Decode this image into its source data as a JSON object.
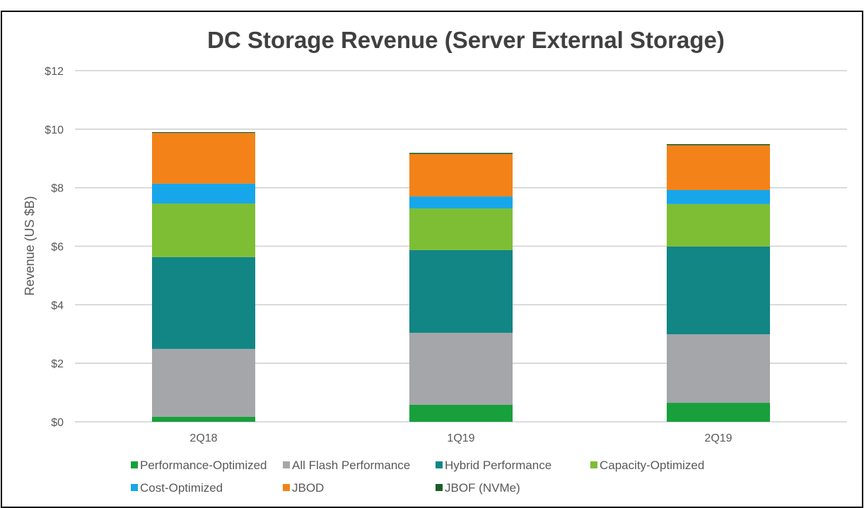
{
  "chart_data": {
    "type": "bar",
    "stacked": true,
    "title": "DC Storage Revenue (Server External Storage)",
    "xlabel": "",
    "ylabel": "Revenue  (US $B)",
    "ylim": [
      0,
      12
    ],
    "yticks": [
      0,
      2,
      4,
      6,
      8,
      10,
      12
    ],
    "ytick_labels": [
      "$0",
      "$2",
      "$4",
      "$6",
      "$8",
      "$10",
      "$12"
    ],
    "grid": true,
    "legend_position": "bottom",
    "categories": [
      "2Q18",
      "1Q19",
      "2Q19"
    ],
    "series": [
      {
        "name": "Performance-Optimized",
        "color": "#17A03C",
        "values": [
          0.17,
          0.58,
          0.65
        ]
      },
      {
        "name": "All Flash Performance",
        "color": "#A5A6A9",
        "values": [
          2.32,
          2.46,
          2.34
        ]
      },
      {
        "name": "Hybrid Performance",
        "color": "#128585",
        "values": [
          3.14,
          2.83,
          3.0
        ]
      },
      {
        "name": "Capacity-Optimized",
        "color": "#7DBE35",
        "values": [
          1.83,
          1.42,
          1.45
        ]
      },
      {
        "name": "Cost-Optimized",
        "color": "#17A6EA",
        "values": [
          0.68,
          0.41,
          0.48
        ]
      },
      {
        "name": "JBOD",
        "color": "#F38319",
        "values": [
          1.73,
          1.45,
          1.53
        ]
      },
      {
        "name": "JBOF (NVMe)",
        "color": "#1C5C2A",
        "values": [
          0.03,
          0.04,
          0.04
        ]
      }
    ]
  }
}
